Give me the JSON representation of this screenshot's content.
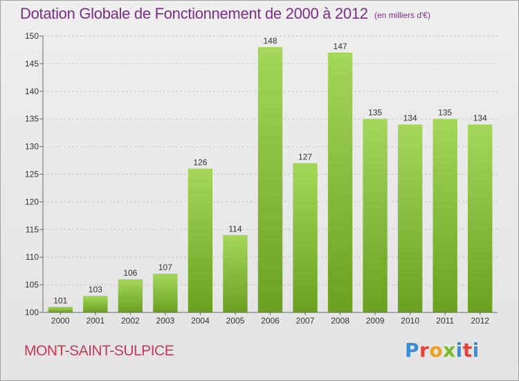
{
  "header": {
    "title": "Dotation Globale de Fonctionnement de 2000 à 2012",
    "unit_note": "(en milliers d'€)"
  },
  "footer": {
    "commune": "MONT-SAINT-SULPICE",
    "brand": "Proxiti"
  },
  "colors": {
    "bar_light": "#a4d65a",
    "bar_dark": "#6aa020",
    "title": "#7a2e86",
    "commune": "#c3385a"
  },
  "chart_data": {
    "type": "bar",
    "categories": [
      "2000",
      "2001",
      "2002",
      "2003",
      "2004",
      "2005",
      "2006",
      "2007",
      "2008",
      "2009",
      "2010",
      "2011",
      "2012"
    ],
    "values": [
      101,
      103,
      106,
      107,
      126,
      114,
      148,
      127,
      147,
      135,
      134,
      135,
      134
    ],
    "data_labels": [
      "101",
      "103",
      "106",
      "107",
      "126",
      "114",
      "148",
      "127",
      "147",
      "135",
      "134",
      "135",
      "134"
    ],
    "title": "Dotation Globale de Fonctionnement de 2000 à 2012",
    "ylim": [
      100,
      150
    ],
    "yticks": [
      100,
      105,
      110,
      115,
      120,
      125,
      130,
      135,
      140,
      145,
      150
    ],
    "grid": true
  }
}
